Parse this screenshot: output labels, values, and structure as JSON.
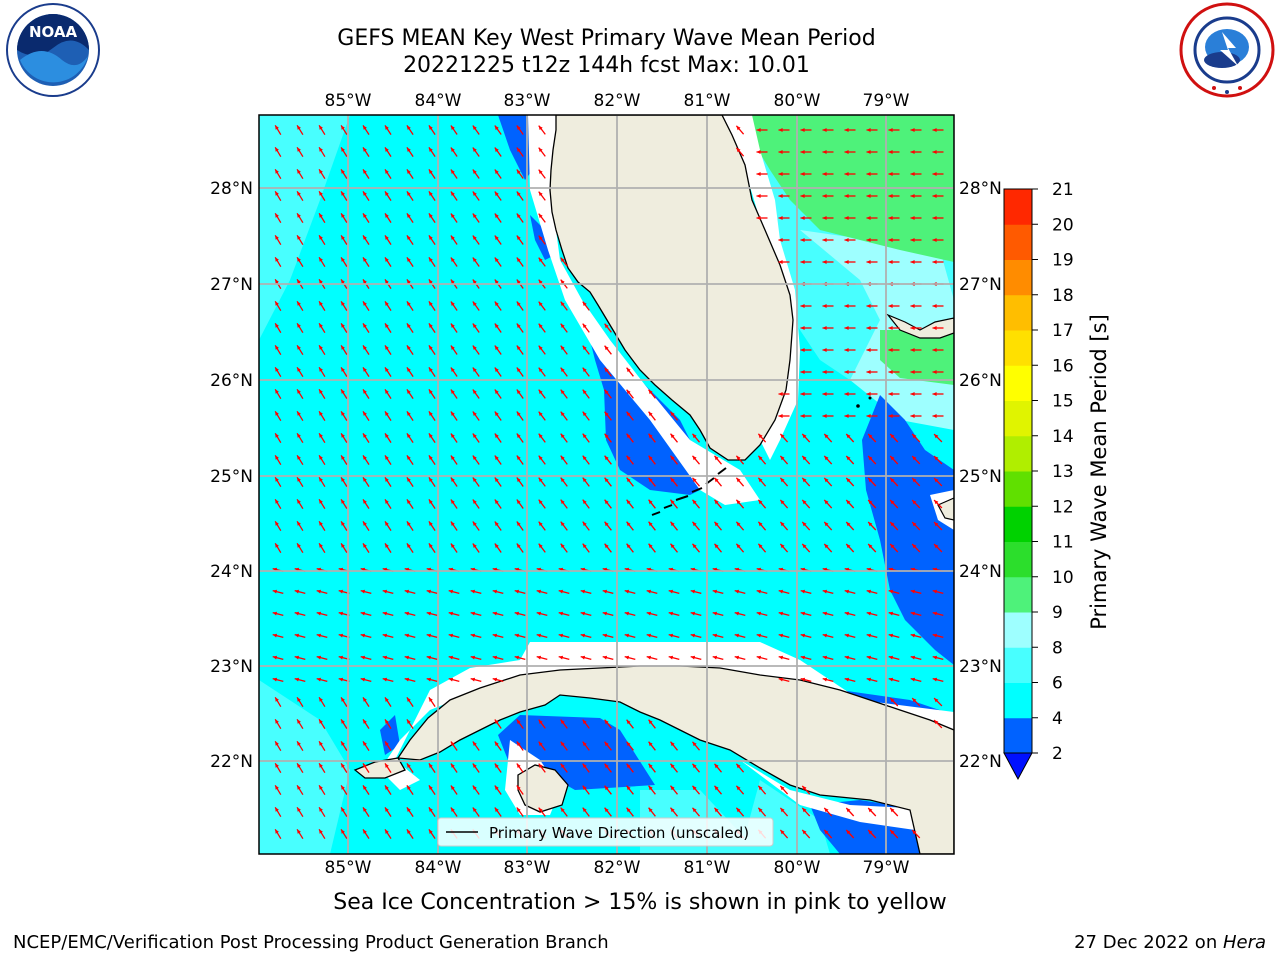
{
  "header": {
    "title_line1": "GEFS MEAN Key West Primary Wave Mean Period",
    "title_line2": "20221225 t12z 144h fcst   Max: 10.01"
  },
  "logos": {
    "left": {
      "name": "NOAA",
      "icon": "noaa-logo",
      "text": "NOAA",
      "ring_text": "NATIONAL OCEANIC AND ATMOSPHERIC ADMINISTRATION · U.S. DEPARTMENT OF COMMERCE"
    },
    "right": {
      "name": "National Weather Service",
      "icon": "nws-logo",
      "ring_text": "NATIONAL WEATHER SERVICE"
    }
  },
  "map": {
    "lon_labels": [
      "85°W",
      "84°W",
      "83°W",
      "82°W",
      "81°W",
      "80°W",
      "79°W"
    ],
    "lat_labels": [
      "28°N",
      "27°N",
      "26°N",
      "25°N",
      "24°N",
      "23°N",
      "22°N"
    ],
    "legend_label": "Primary Wave Direction (unscaled)",
    "arrow_color": "#ff0000",
    "land_color": "#efedde",
    "grid_color": "#b0b0b0"
  },
  "colorbar": {
    "label": "Primary Wave Mean Period [s]",
    "ticks": [
      "2",
      "4",
      "6",
      "8",
      "9",
      "10",
      "11",
      "12",
      "13",
      "14",
      "15",
      "16",
      "17",
      "18",
      "19",
      "20",
      "21"
    ],
    "colors": [
      "#0062ff",
      "#00ffff",
      "#48ffff",
      "#9effff",
      "#4ef27a",
      "#2cde2c",
      "#00d200",
      "#60e000",
      "#b0ee00",
      "#e0f400",
      "#ffff00",
      "#ffe000",
      "#ffbe00",
      "#ff8c00",
      "#ff5a00",
      "#ff2800",
      "#ff0000"
    ],
    "under_color": "#0010ff"
  },
  "caption": "Sea Ice Concentration > 15% is shown in pink to yellow",
  "footer": {
    "left": "NCEP/EMC/Verification Post Processing Product Generation Branch",
    "date": "27 Dec 2022 on ",
    "machine": "Hera"
  }
}
